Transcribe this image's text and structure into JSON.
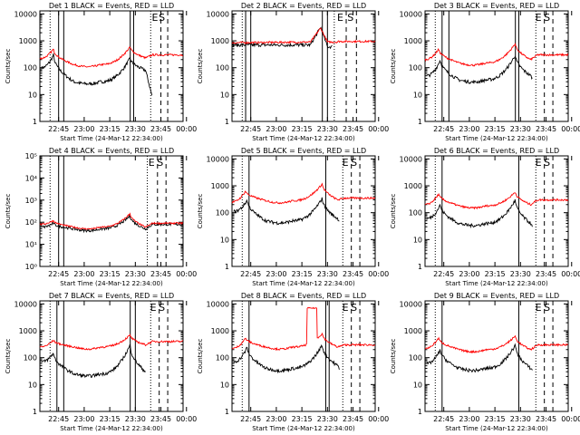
{
  "figure": {
    "colors": {
      "events": "#000000",
      "lld": "#ff0000",
      "axis": "#000000"
    },
    "legend_text": "BLACK = Events, RED = LLD",
    "xlabel": "Start Time (24-Mar-12 22:34:00)",
    "ylabel": "Counts/sec",
    "x_ticks": [
      "22:45",
      "23:00",
      "23:15",
      "23:30",
      "23:45",
      "00:00"
    ],
    "markers": [
      "E",
      "S"
    ]
  },
  "chart_data": [
    {
      "type": "line",
      "title": "Det 1 BLACK = Events, RED = LLD",
      "scale": "log",
      "y_ticks": [
        "1",
        "10",
        "100",
        "1000",
        "10000"
      ],
      "ylim": [
        1,
        13000
      ],
      "xlim": [
        0,
        84
      ],
      "vlines": {
        "solid": [
          11,
          14,
          53,
          55
        ],
        "dotted": [
          6,
          65
        ],
        "dashed": [
          71,
          75
        ],
        "xlim_note": "minutes after 22:34"
      },
      "series": [
        {
          "name": "Events",
          "color": "#000000",
          "shape": "peaked",
          "from": 1,
          "to": 66,
          "start": 100,
          "p1": {
            "x": 8,
            "v": 300
          },
          "base": 30,
          "p2": {
            "x": 53,
            "v": 230
          },
          "end": 80,
          "tail": 8
        },
        {
          "name": "LLD",
          "color": "#ff0000",
          "shape": "peaked",
          "from": 0,
          "to": 84,
          "start": 220,
          "p1": {
            "x": 8,
            "v": 500
          },
          "base": 130,
          "p2": {
            "x": 53,
            "v": 600
          },
          "end": 230,
          "tail": 300
        }
      ]
    },
    {
      "type": "line",
      "title": "Det 2 BLACK = Events, RED = LLD",
      "scale": "log",
      "y_ticks": [
        "1",
        "10",
        "100",
        "1000",
        "10000"
      ],
      "ylim": [
        1,
        13000
      ],
      "xlim": [
        0,
        84
      ],
      "vlines": {
        "solid": [
          8,
          11,
          53,
          56
        ],
        "dotted": [
          6,
          60
        ],
        "dashed": [
          67,
          73
        ]
      },
      "series": [
        {
          "name": "Events",
          "color": "#000000",
          "shape": "flat",
          "from": 0,
          "to": 59,
          "start": 700,
          "base": 700,
          "p2": {
            "x": 52,
            "v": 3200
          },
          "end": 600,
          "tail": 120
        },
        {
          "name": "LLD",
          "color": "#ff0000",
          "shape": "flat",
          "from": 0,
          "to": 84,
          "start": 850,
          "base": 900,
          "p2": {
            "x": 52,
            "v": 3000
          },
          "end": 900,
          "tail": 950
        }
      ]
    },
    {
      "type": "line",
      "title": "Det 3 BLACK = Events, RED = LLD",
      "scale": "log",
      "y_ticks": [
        "1",
        "10",
        "100",
        "1000",
        "10000"
      ],
      "ylim": [
        1,
        13000
      ],
      "xlim": [
        0,
        84
      ],
      "vlines": {
        "solid": [
          10,
          14,
          53,
          55
        ],
        "dotted": [
          6,
          65
        ],
        "dashed": [
          70,
          75
        ]
      },
      "series": [
        {
          "name": "Events",
          "color": "#000000",
          "shape": "peaked",
          "from": 1,
          "to": 63,
          "start": 50,
          "p1": {
            "x": 9,
            "v": 200
          },
          "base": 35,
          "p2": {
            "x": 53,
            "v": 300
          },
          "end": 50,
          "tail": 20
        },
        {
          "name": "LLD",
          "color": "#ff0000",
          "shape": "peaked",
          "from": 0,
          "to": 84,
          "start": 200,
          "p1": {
            "x": 8,
            "v": 500
          },
          "base": 150,
          "p2": {
            "x": 53,
            "v": 800
          },
          "end": 200,
          "tail": 300
        }
      ]
    },
    {
      "type": "line",
      "title": "Det 4 BLACK = Events, RED = LLD",
      "scale": "log",
      "y_ticks": [
        "10⁰",
        "10¹",
        "10²",
        "10³",
        "10⁴",
        "10⁵"
      ],
      "ylim": [
        1,
        100000
      ],
      "xlim": [
        0,
        84
      ],
      "vlines": {
        "solid": [
          11,
          14
        ],
        "dotted": [
          6,
          63
        ],
        "dashed": [
          69,
          74
        ]
      },
      "series": [
        {
          "name": "Events",
          "color": "#000000",
          "shape": "peaked",
          "from": 1,
          "to": 84,
          "start": 60,
          "p1": {
            "x": 8,
            "v": 90
          },
          "base": 50,
          "p2": {
            "x": 53,
            "v": 200
          },
          "end": 50,
          "tail": 80
        },
        {
          "name": "LLD",
          "color": "#ff0000",
          "shape": "peaked",
          "from": 0,
          "to": 84,
          "start": 80,
          "p1": {
            "x": 8,
            "v": 120
          },
          "base": 60,
          "p2": {
            "x": 53,
            "v": 250
          },
          "end": 60,
          "tail": 90
        }
      ]
    },
    {
      "type": "line",
      "title": "Det 5 BLACK = Events, RED = LLD",
      "scale": "log",
      "y_ticks": [
        "1",
        "10",
        "100",
        "1000",
        "10000"
      ],
      "ylim": [
        1,
        13000
      ],
      "xlim": [
        0,
        84
      ],
      "vlines": {
        "solid": [
          10,
          55
        ],
        "dotted": [
          6,
          65
        ],
        "dashed": [
          70,
          75
        ]
      },
      "series": [
        {
          "name": "Events",
          "color": "#000000",
          "shape": "peaked",
          "from": 1,
          "to": 63,
          "start": 110,
          "p1": {
            "x": 9,
            "v": 300
          },
          "base": 50,
          "p2": {
            "x": 53,
            "v": 350
          },
          "end": 60,
          "tail": 30
        },
        {
          "name": "LLD",
          "color": "#ff0000",
          "shape": "peaked",
          "from": 0,
          "to": 84,
          "start": 250,
          "p1": {
            "x": 8,
            "v": 650
          },
          "base": 280,
          "p2": {
            "x": 53,
            "v": 1200
          },
          "end": 300,
          "tail": 350
        }
      ]
    },
    {
      "type": "line",
      "title": "Det 6 BLACK = Events, RED = LLD",
      "scale": "log",
      "y_ticks": [
        "1",
        "10",
        "100",
        "1000",
        "10000"
      ],
      "ylim": [
        1,
        13000
      ],
      "xlim": [
        0,
        84
      ],
      "vlines": {
        "solid": [
          10,
          55
        ],
        "dotted": [
          6,
          65
        ],
        "dashed": [
          70,
          75
        ]
      },
      "series": [
        {
          "name": "Events",
          "color": "#000000",
          "shape": "peaked",
          "from": 1,
          "to": 63,
          "start": 60,
          "p1": {
            "x": 9,
            "v": 200
          },
          "base": 40,
          "p2": {
            "x": 53,
            "v": 300
          },
          "end": 40,
          "tail": 10
        },
        {
          "name": "LLD",
          "color": "#ff0000",
          "shape": "peaked",
          "from": 0,
          "to": 84,
          "start": 200,
          "p1": {
            "x": 8,
            "v": 500
          },
          "base": 180,
          "p2": {
            "x": 53,
            "v": 600
          },
          "end": 200,
          "tail": 300
        }
      ]
    },
    {
      "type": "line",
      "title": "Det 7 BLACK = Events, RED = LLD",
      "scale": "log",
      "y_ticks": [
        "1",
        "10",
        "100",
        "1000",
        "10000"
      ],
      "ylim": [
        1,
        13000
      ],
      "xlim": [
        0,
        84
      ],
      "vlines": {
        "solid": [
          10,
          14,
          53,
          56
        ],
        "dotted": [
          6,
          65
        ],
        "dashed": [
          70,
          75
        ]
      },
      "series": [
        {
          "name": "Events",
          "color": "#000000",
          "shape": "peaked",
          "from": 1,
          "to": 62,
          "start": 70,
          "p1": {
            "x": 8,
            "v": 150
          },
          "base": 25,
          "p2": {
            "x": 53,
            "v": 300
          },
          "end": 30,
          "tail": 10
        },
        {
          "name": "LLD",
          "color": "#ff0000",
          "shape": "peaked",
          "from": 0,
          "to": 84,
          "start": 250,
          "p1": {
            "x": 8,
            "v": 450
          },
          "base": 250,
          "p2": {
            "x": 53,
            "v": 700
          },
          "end": 300,
          "tail": 400
        }
      ]
    },
    {
      "type": "line",
      "title": "Det 8 BLACK = Events, RED = LLD",
      "scale": "log",
      "y_ticks": [
        "1",
        "10",
        "100",
        "1000",
        "10000"
      ],
      "ylim": [
        1,
        13000
      ],
      "xlim": [
        0,
        84
      ],
      "vlines": {
        "solid": [
          10,
          55,
          57
        ],
        "dotted": [
          6,
          65
        ],
        "dashed": [
          70,
          75
        ]
      },
      "series": [
        {
          "name": "Events",
          "color": "#000000",
          "shape": "peaked",
          "from": 1,
          "to": 63,
          "start": 70,
          "p1": {
            "x": 9,
            "v": 250
          },
          "base": 40,
          "p2": {
            "x": 53,
            "v": 300
          },
          "end": 50,
          "tail": 20
        },
        {
          "name": "LLD",
          "color": "#ff0000",
          "shape": "peaked",
          "from": 0,
          "to": 84,
          "start": 220,
          "p1": {
            "x": 8,
            "v": 550
          },
          "base": 250,
          "p2": {
            "x": 53,
            "v": 800
          },
          "end": 250,
          "tail": 300,
          "burst": {
            "from": 44,
            "to": 50,
            "v": 7000
          }
        }
      ]
    },
    {
      "type": "line",
      "title": "Det 9 BLACK = Events, RED = LLD",
      "scale": "log",
      "y_ticks": [
        "1",
        "10",
        "100",
        "1000",
        "10000"
      ],
      "ylim": [
        1,
        13000
      ],
      "xlim": [
        0,
        84
      ],
      "vlines": {
        "solid": [
          10,
          55
        ],
        "dotted": [
          6,
          65
        ],
        "dashed": [
          70,
          75
        ]
      },
      "series": [
        {
          "name": "Events",
          "color": "#000000",
          "shape": "peaked",
          "from": 1,
          "to": 63,
          "start": 60,
          "p1": {
            "x": 9,
            "v": 200
          },
          "base": 40,
          "p2": {
            "x": 53,
            "v": 300
          },
          "end": 40,
          "tail": 20
        },
        {
          "name": "LLD",
          "color": "#ff0000",
          "shape": "peaked",
          "from": 0,
          "to": 84,
          "start": 220,
          "p1": {
            "x": 8,
            "v": 550
          },
          "base": 200,
          "p2": {
            "x": 53,
            "v": 650
          },
          "end": 200,
          "tail": 300
        }
      ]
    }
  ]
}
